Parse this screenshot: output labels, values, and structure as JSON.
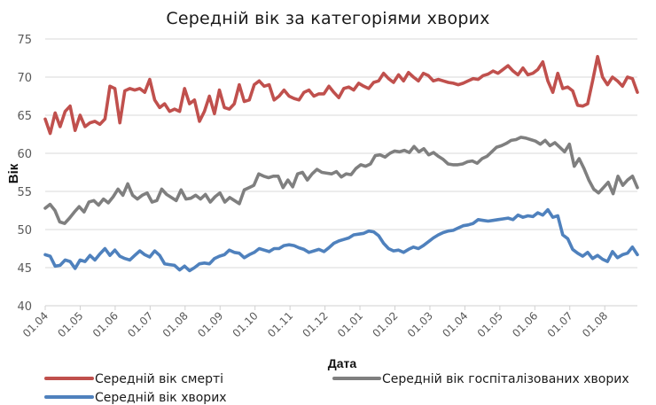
{
  "chart_data": {
    "type": "line",
    "title": "Середній вік за категоріями хворих",
    "xlabel": "Дата",
    "ylabel": "Вік",
    "ylim": [
      40,
      75
    ],
    "yticks": [
      40,
      45,
      50,
      55,
      60,
      65,
      70,
      75
    ],
    "grid": true,
    "legend_position": "bottom",
    "x_tick_labels": [
      "01.04",
      "01.05",
      "01.06",
      "01.07",
      "01.08",
      "01.09",
      "01.10",
      "01.11",
      "01.12",
      "01.01",
      "01.02",
      "01.03",
      "01.04",
      "01.05",
      "01.06",
      "01.07",
      "01.08"
    ],
    "x_range_months": [
      0,
      16.95
    ],
    "series": [
      {
        "name": "Середній вік смерті",
        "color": "#C0504D",
        "values": [
          64.5,
          62.6,
          65.3,
          63.5,
          65.5,
          66.2,
          63,
          65,
          63.5,
          64,
          64.2,
          63.8,
          64.5,
          68.8,
          68.5,
          64,
          68.2,
          68.5,
          68.3,
          68.5,
          68,
          69.7,
          67,
          66,
          66.5,
          65.5,
          65.8,
          65.5,
          68.5,
          66.5,
          67,
          64.2,
          65.5,
          67.5,
          65.2,
          68.3,
          66,
          65.8,
          66.5,
          69,
          66.8,
          67,
          69,
          69.5,
          68.8,
          69,
          67,
          67.5,
          68.3,
          67.5,
          67.2,
          67,
          68,
          68.3,
          67.5,
          67.8,
          67.8,
          68.8,
          68,
          67.3,
          68.5,
          68.7,
          68.3,
          69.2,
          68.8,
          68.5,
          69.3,
          69.5,
          70.5,
          69.8,
          69.3,
          70.3,
          69.5,
          70.6,
          70,
          69.5,
          70.5,
          70.2,
          69.5,
          69.7,
          69.5,
          69.3,
          69.2,
          69,
          69.2,
          69.5,
          69.8,
          69.7,
          70.2,
          70.4,
          70.8,
          70.5,
          71,
          71.5,
          70.8,
          70.3,
          71.2,
          70.3,
          70.5,
          71,
          72,
          69.5,
          68,
          70.5,
          68.5,
          68.7,
          68.2,
          66.3,
          66.2,
          66.5,
          69.5,
          72.7,
          70,
          69,
          70,
          69.5,
          68.8,
          70,
          69.8,
          68
        ]
      },
      {
        "name": "Середній вік госпіталізованих хворих",
        "color": "#7F7F7F",
        "values": [
          52.8,
          53.3,
          52.5,
          51,
          50.8,
          51.5,
          52.3,
          53,
          52.3,
          53.6,
          53.8,
          53.2,
          54,
          53.5,
          54.3,
          55.3,
          54.5,
          56,
          54.5,
          54,
          54.5,
          54.8,
          53.6,
          53.8,
          55.3,
          54.6,
          54.2,
          53.8,
          55.2,
          54,
          54.1,
          54.5,
          54,
          54.6,
          53.6,
          54.3,
          54.8,
          53.6,
          54.2,
          53.8,
          53.4,
          55.2,
          55.5,
          55.8,
          57.3,
          57,
          56.8,
          57,
          57,
          55.5,
          56.5,
          55.6,
          57.3,
          57.5,
          56.5,
          57.3,
          57.9,
          57.5,
          57.4,
          57.3,
          57.6,
          56.9,
          57.3,
          57.2,
          58,
          58.5,
          58.3,
          58.6,
          59.7,
          59.8,
          59.5,
          60,
          60.3,
          60.2,
          60.4,
          60.1,
          60.9,
          60.2,
          60.6,
          59.8,
          60.1,
          59.6,
          59.2,
          58.6,
          58.5,
          58.5,
          58.6,
          58.9,
          59,
          58.7,
          59.3,
          59.6,
          60.2,
          60.8,
          61,
          61.3,
          61.7,
          61.8,
          62.1,
          62,
          61.8,
          61.6,
          61.2,
          61.7,
          61,
          61.4,
          60.8,
          60.2,
          61.2,
          58.3,
          59.3,
          58,
          56.5,
          55.3,
          54.8,
          55.5,
          56.2,
          54.7,
          57,
          55.8,
          56.5,
          57,
          55.5
        ]
      },
      {
        "name": "Середній вік хворих",
        "color": "#4F81BD",
        "values": [
          46.7,
          46.5,
          45.2,
          45.3,
          46,
          45.8,
          44.9,
          46,
          45.8,
          46.6,
          46,
          46.8,
          47.5,
          46.6,
          47.3,
          46.5,
          46.2,
          46,
          46.6,
          47.2,
          46.7,
          46.4,
          47.2,
          46.6,
          45.5,
          45.4,
          45.3,
          44.7,
          45.2,
          44.6,
          45,
          45.5,
          45.6,
          45.5,
          46.2,
          46.5,
          46.7,
          47.3,
          47,
          46.9,
          46.3,
          46.7,
          47,
          47.5,
          47.3,
          47.1,
          47.5,
          47.5,
          47.9,
          48,
          47.9,
          47.6,
          47.4,
          47,
          47.2,
          47.4,
          47.1,
          47.6,
          48.2,
          48.5,
          48.7,
          48.9,
          49.3,
          49.4,
          49.5,
          49.8,
          49.7,
          49.2,
          48.2,
          47.5,
          47.2,
          47.3,
          47,
          47.4,
          47.7,
          47.5,
          47.9,
          48.4,
          48.9,
          49.3,
          49.6,
          49.8,
          49.9,
          50.2,
          50.5,
          50.6,
          50.8,
          51.3,
          51.2,
          51.1,
          51.2,
          51.3,
          51.4,
          51.5,
          51.3,
          51.9,
          51.6,
          51.8,
          51.7,
          52.2,
          51.9,
          52.6,
          51.6,
          51.8,
          49.3,
          48.8,
          47.4,
          46.9,
          46.5,
          47,
          46.2,
          46.6,
          46.1,
          45.8,
          47.1,
          46.3,
          46.7,
          46.9,
          47.7,
          46.7
        ]
      }
    ]
  },
  "legend": {
    "items": [
      {
        "label": "Середній вік смерті",
        "color": "#C0504D"
      },
      {
        "label": "Середній вік госпіталізованих хворих",
        "color": "#7F7F7F"
      },
      {
        "label": "Середній вік хворих",
        "color": "#4F81BD"
      }
    ]
  }
}
